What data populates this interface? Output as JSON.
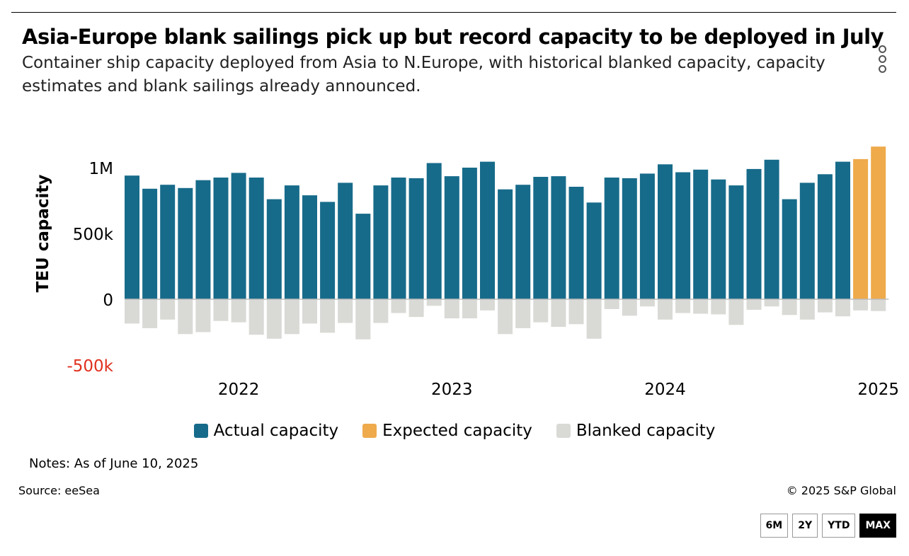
{
  "header": {
    "title": "Asia-Europe blank sailings pick up but record capacity to be deployed in July",
    "subtitle": "Container ship capacity deployed from Asia to N.Europe, with historical blanked capacity, capacity estimates and blank sailings already announced."
  },
  "menu_icon": "kebab-menu-icon",
  "colors": {
    "actual": "#176b8a",
    "expected": "#eeaa4b",
    "blanked": "#d9d9d6",
    "negative_tick": "#e0301e"
  },
  "chart_data": {
    "type": "bar",
    "ylabel": "TEU capacity",
    "ylim": [
      -500000,
      1200000
    ],
    "yticks": [
      {
        "value": 1000000,
        "label": "1M"
      },
      {
        "value": 500000,
        "label": "500k"
      },
      {
        "value": 0,
        "label": "0"
      },
      {
        "value": -500000,
        "label": "-500k"
      }
    ],
    "xticks": [
      {
        "index": 6,
        "label": "2022"
      },
      {
        "index": 18,
        "label": "2023"
      },
      {
        "index": 30,
        "label": "2024"
      },
      {
        "index": 42,
        "label": "2025"
      }
    ],
    "legend": [
      "Actual capacity",
      "Expected capacity",
      "Blanked capacity"
    ],
    "series": [
      {
        "name": "Actual capacity",
        "start_index": 0,
        "values": [
          940000,
          840000,
          870000,
          845000,
          905000,
          925000,
          960000,
          925000,
          760000,
          865000,
          790000,
          740000,
          885000,
          650000,
          865000,
          925000,
          920000,
          1035000,
          935000,
          1000000,
          1045000,
          835000,
          870000,
          930000,
          935000,
          855000,
          735000,
          925000,
          920000,
          955000,
          1025000,
          965000,
          985000,
          910000,
          865000,
          990000,
          1060000,
          760000,
          885000,
          950000,
          1045000
        ]
      },
      {
        "name": "Expected capacity",
        "start_index": 41,
        "values": [
          1065000,
          1160000
        ]
      },
      {
        "name": "Blanked capacity",
        "start_index": 0,
        "values": [
          -185000,
          -220000,
          -155000,
          -265000,
          -250000,
          -165000,
          -175000,
          -270000,
          -300000,
          -265000,
          -185000,
          -255000,
          -180000,
          -305000,
          -180000,
          -105000,
          -135000,
          -50000,
          -145000,
          -145000,
          -85000,
          -265000,
          -220000,
          -175000,
          -210000,
          -190000,
          -300000,
          -75000,
          -125000,
          -55000,
          -155000,
          -105000,
          -110000,
          -115000,
          -195000,
          -80000,
          -55000,
          -120000,
          -155000,
          -100000,
          -130000,
          -85000,
          -90000
        ]
      }
    ]
  },
  "footer": {
    "notes": "Notes: As of June 10, 2025",
    "source": "Source: eeSea",
    "copyright": "© 2025 S&P Global"
  },
  "range_buttons": [
    {
      "label": "6M",
      "active": false
    },
    {
      "label": "2Y",
      "active": false
    },
    {
      "label": "YTD",
      "active": false
    },
    {
      "label": "MAX",
      "active": true
    }
  ]
}
